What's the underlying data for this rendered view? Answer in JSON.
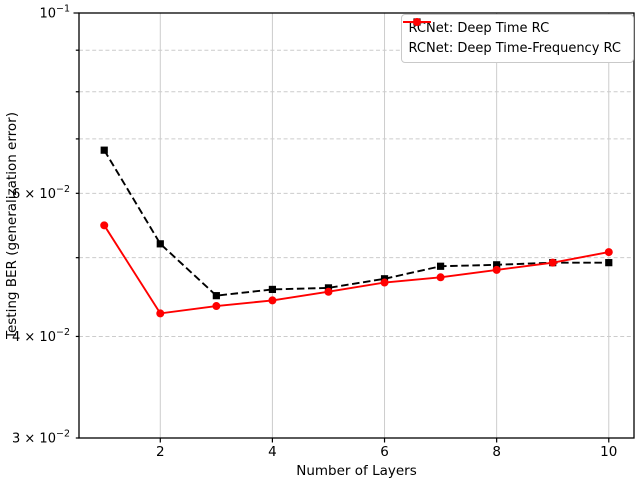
{
  "chart_data": {
    "type": "line",
    "title": "",
    "xlabel": "Number of Layers",
    "ylabel": "Testing BER (generalization error)",
    "x": [
      1,
      2,
      3,
      4,
      5,
      6,
      7,
      8,
      9,
      10
    ],
    "series": [
      {
        "name": "RCNet: Deep Time RC",
        "color": "#000000",
        "linestyle": "dashed",
        "marker": "square",
        "values": [
          0.0678,
          0.052,
          0.0449,
          0.0457,
          0.0459,
          0.0471,
          0.0488,
          0.049,
          0.0493,
          0.0493
        ]
      },
      {
        "name": "RCNet: Deep Time-Frequency RC",
        "color": "#ff0000",
        "linestyle": "solid",
        "marker": "circle",
        "values": [
          0.0548,
          0.0427,
          0.0436,
          0.0443,
          0.0454,
          0.0466,
          0.0473,
          0.0483,
          0.0493,
          0.0508
        ]
      }
    ],
    "yscale": "log",
    "xlim": [
      0.55,
      10.45
    ],
    "ylim": [
      0.03,
      0.1
    ],
    "xticks": [
      {
        "v": 2,
        "label": "2"
      },
      {
        "v": 4,
        "label": "4"
      },
      {
        "v": 6,
        "label": "6"
      },
      {
        "v": 8,
        "label": "8"
      },
      {
        "v": 10,
        "label": "10"
      }
    ],
    "yticks": [
      {
        "v": 0.1,
        "major": true,
        "prefix": "",
        "base": "10",
        "exp": "−1"
      },
      {
        "v": 0.09
      },
      {
        "v": 0.08
      },
      {
        "v": 0.07
      },
      {
        "v": 0.06,
        "prefix": "6 × ",
        "base": "10",
        "exp": "−2"
      },
      {
        "v": 0.05
      },
      {
        "v": 0.04,
        "prefix": "4 × ",
        "base": "10",
        "exp": "−2"
      },
      {
        "v": 0.03,
        "prefix": "3 × ",
        "base": "10",
        "exp": "−2"
      }
    ],
    "grid": {
      "vertical_style": "solid",
      "horizontal_style": "dashed",
      "color": "#cccccc"
    },
    "legend": {
      "position": "upper-right",
      "border_color": "#c9c9c9",
      "background": "#ffffff"
    },
    "spine_color": "#000000"
  }
}
